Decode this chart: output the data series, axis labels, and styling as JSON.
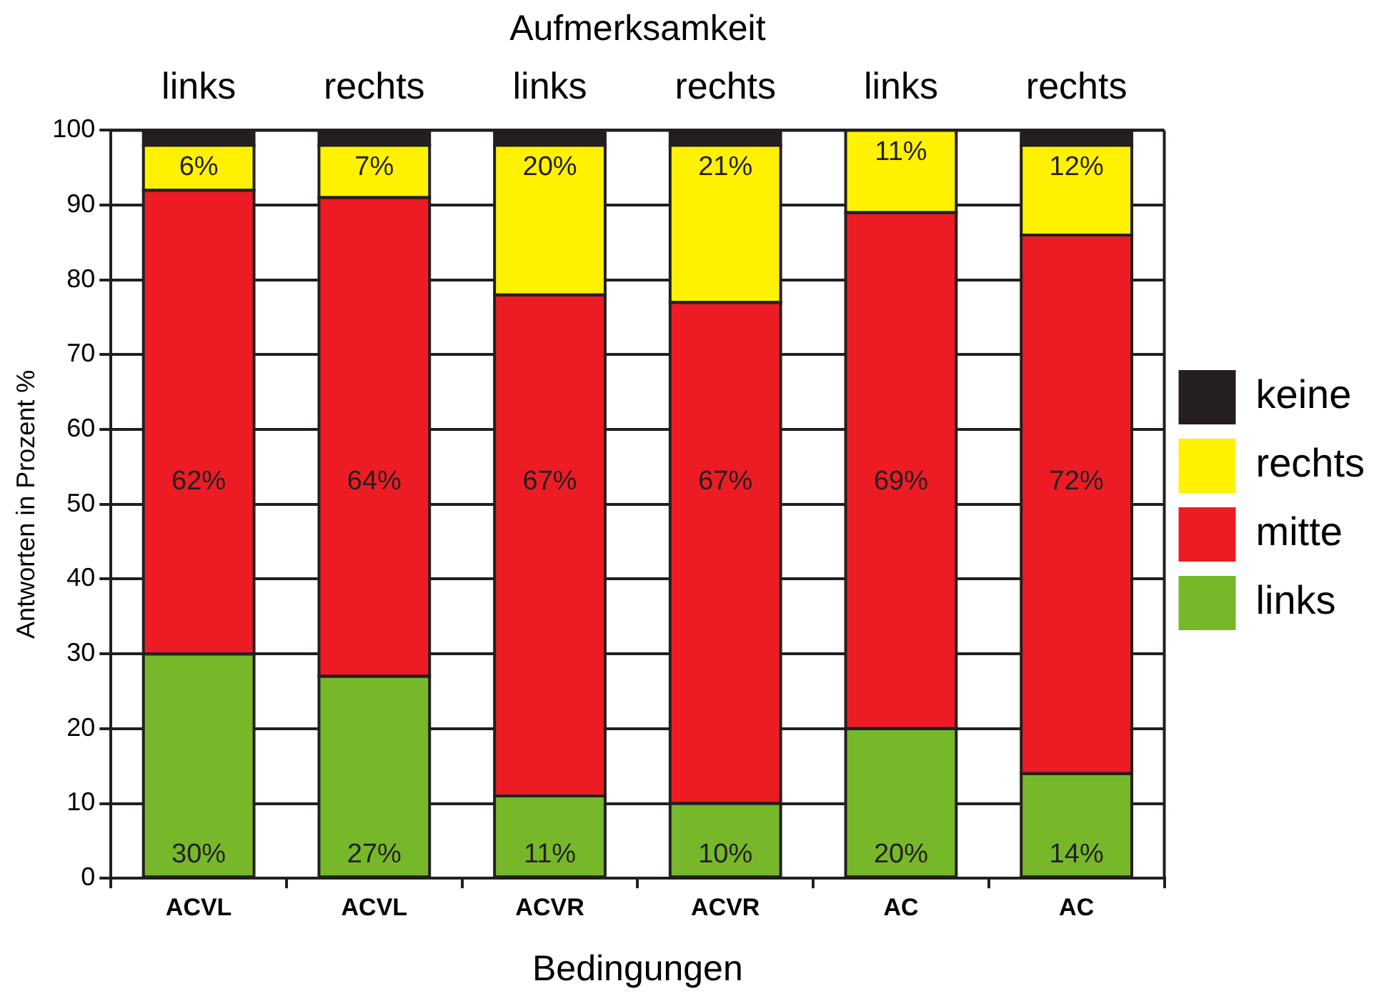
{
  "chart_data": {
    "type": "bar",
    "stacked": true,
    "x2label": "Aufmerksamkeit",
    "annotations": [
      "links",
      "rechts",
      "links",
      "rechts",
      "links",
      "rechts"
    ],
    "categories": [
      "ACVL",
      "ACVL",
      "ACVR",
      "ACVR",
      "AC",
      "AC"
    ],
    "xlabel": "Bedingungen",
    "ylabel": "Antworten in Prozent %",
    "ylim": [
      0,
      100
    ],
    "yticks": [
      0,
      10,
      20,
      30,
      40,
      50,
      60,
      70,
      80,
      90,
      100
    ],
    "grid": "y",
    "legend": "right",
    "series": [
      {
        "name": "links",
        "color": "#77b82a",
        "values": [
          30,
          27,
          11,
          10,
          20,
          14
        ],
        "value_labels": [
          "30%",
          "27%",
          "11%",
          "10%",
          "20%",
          "14%"
        ]
      },
      {
        "name": "mitte",
        "color": "#ed1c24",
        "values": [
          62,
          64,
          67,
          67,
          69,
          72
        ],
        "value_labels": [
          "62%",
          "64%",
          "67%",
          "67%",
          "69%",
          "72%"
        ]
      },
      {
        "name": "rechts",
        "color": "#fff200",
        "values": [
          6,
          7,
          20,
          21,
          11,
          12
        ],
        "value_labels": [
          "6%",
          "7%",
          "20%",
          "21%",
          "11%",
          "12%"
        ]
      },
      {
        "name": "keine",
        "color": "#231f20",
        "values": [
          2,
          2,
          2,
          2,
          0,
          2
        ]
      }
    ]
  }
}
